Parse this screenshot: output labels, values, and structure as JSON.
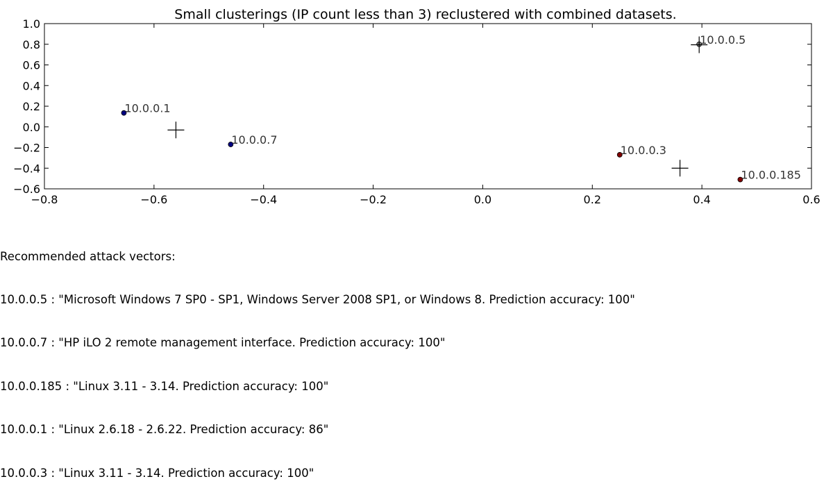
{
  "chart_data": {
    "type": "scatter",
    "title": "Small clusterings (IP count less than 3) reclustered with combined datasets.",
    "xlabel": "",
    "ylabel": "",
    "xlim": [
      -0.8,
      0.6
    ],
    "ylim": [
      -0.6,
      1.0
    ],
    "x_ticks": [
      -0.8,
      -0.6,
      -0.4,
      -0.2,
      0.0,
      0.2,
      0.4,
      0.6
    ],
    "x_tick_labels": [
      "−0.8",
      "−0.6",
      "−0.4",
      "−0.2",
      "0.0",
      "0.2",
      "0.4",
      "0.6"
    ],
    "y_ticks": [
      1.0,
      0.8,
      0.6,
      0.4,
      0.2,
      0.0,
      -0.2,
      -0.4,
      -0.6
    ],
    "y_tick_labels": [
      "1.0",
      "0.8",
      "0.6",
      "0.4",
      "0.2",
      "0.0",
      "−0.2",
      "−0.4",
      "−0.6"
    ],
    "grid": false,
    "points": [
      {
        "label": "10.0.0.1",
        "x": -0.655,
        "y": 0.135,
        "color": "#000080"
      },
      {
        "label": "10.0.0.7",
        "x": -0.46,
        "y": -0.17,
        "color": "#000080"
      },
      {
        "label": "10.0.0.3",
        "x": 0.25,
        "y": -0.27,
        "color": "#800000"
      },
      {
        "label": "10.0.0.185",
        "x": 0.47,
        "y": -0.51,
        "color": "#800000"
      },
      {
        "label": "10.0.0.5",
        "x": 0.395,
        "y": 0.8,
        "color": "#808080"
      }
    ],
    "centroids": [
      {
        "x": -0.56,
        "y": -0.03
      },
      {
        "x": 0.36,
        "y": -0.4
      },
      {
        "x": 0.395,
        "y": 0.795
      }
    ]
  },
  "notes": {
    "heading": "Recommended attack vectors:",
    "lines": [
      "10.0.0.5 : \"Microsoft Windows 7 SP0 - SP1, Windows Server 2008 SP1, or Windows 8. Prediction accuracy: 100\"",
      "10.0.0.7 : \"HP iLO 2 remote management interface. Prediction accuracy: 100\"",
      "10.0.0.185 : \"Linux 3.11 - 3.14. Prediction accuracy: 100\"",
      "10.0.0.1 : \"Linux 2.6.18 - 2.6.22. Prediction accuracy: 86\"",
      "10.0.0.3 : \"Linux 3.11 - 3.14. Prediction accuracy: 100\""
    ]
  }
}
